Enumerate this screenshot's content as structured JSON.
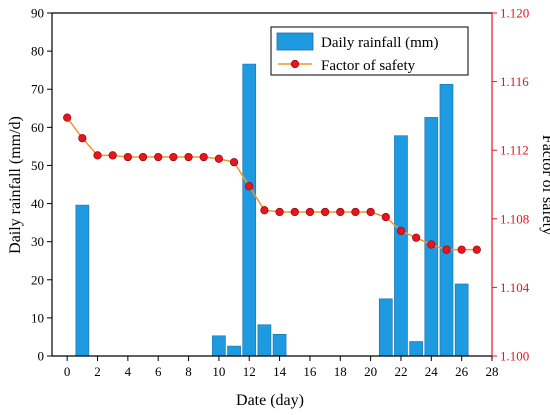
{
  "chart_data": {
    "type": "bar+line",
    "xlabel": "Date (day)",
    "x_ticks": [
      "0",
      "2",
      "4",
      "6",
      "8",
      "10",
      "12",
      "14",
      "16",
      "18",
      "20",
      "22",
      "24",
      "26",
      "28"
    ],
    "xlim": [
      -1,
      28
    ],
    "left_axis": {
      "label": "Daily rainfall (mm/d)",
      "ylim": [
        0,
        90
      ],
      "ticks": [
        "0",
        "10",
        "20",
        "30",
        "40",
        "50",
        "60",
        "70",
        "80",
        "90"
      ]
    },
    "right_axis": {
      "label": "Factor of safety",
      "ylim": [
        1.1,
        1.12
      ],
      "ticks": [
        "1.100",
        "1.104",
        "1.108",
        "1.112",
        "1.116",
        "1.120"
      ],
      "color": "#e8141e"
    },
    "series": [
      {
        "name": "Daily rainfall (mm)",
        "type": "bar",
        "axis": "left",
        "color": "#1e9be0",
        "x": [
          1,
          10,
          11,
          12,
          13,
          14,
          21,
          22,
          23,
          24,
          25,
          26
        ],
        "values": [
          39.6,
          5.3,
          2.6,
          76.6,
          8.2,
          5.7,
          15.0,
          57.8,
          3.8,
          62.6,
          71.3,
          18.9
        ]
      },
      {
        "name": "Factor of safety",
        "type": "line",
        "axis": "right",
        "color": "#e8141e",
        "line_color": "#f0962a",
        "x": [
          0,
          1,
          2,
          3,
          4,
          5,
          6,
          7,
          8,
          9,
          10,
          11,
          12,
          13,
          14,
          15,
          16,
          17,
          18,
          19,
          20,
          21,
          22,
          23,
          24,
          25,
          26,
          27
        ],
        "values": [
          1.1139,
          1.1127,
          1.1117,
          1.1117,
          1.1116,
          1.1116,
          1.1116,
          1.1116,
          1.1116,
          1.1116,
          1.1115,
          1.1113,
          1.1099,
          1.1085,
          1.1084,
          1.1084,
          1.1084,
          1.1084,
          1.1084,
          1.1084,
          1.1084,
          1.1081,
          1.1073,
          1.1069,
          1.1065,
          1.1062,
          1.1062,
          1.1062
        ]
      }
    ],
    "legend": "top-right"
  }
}
